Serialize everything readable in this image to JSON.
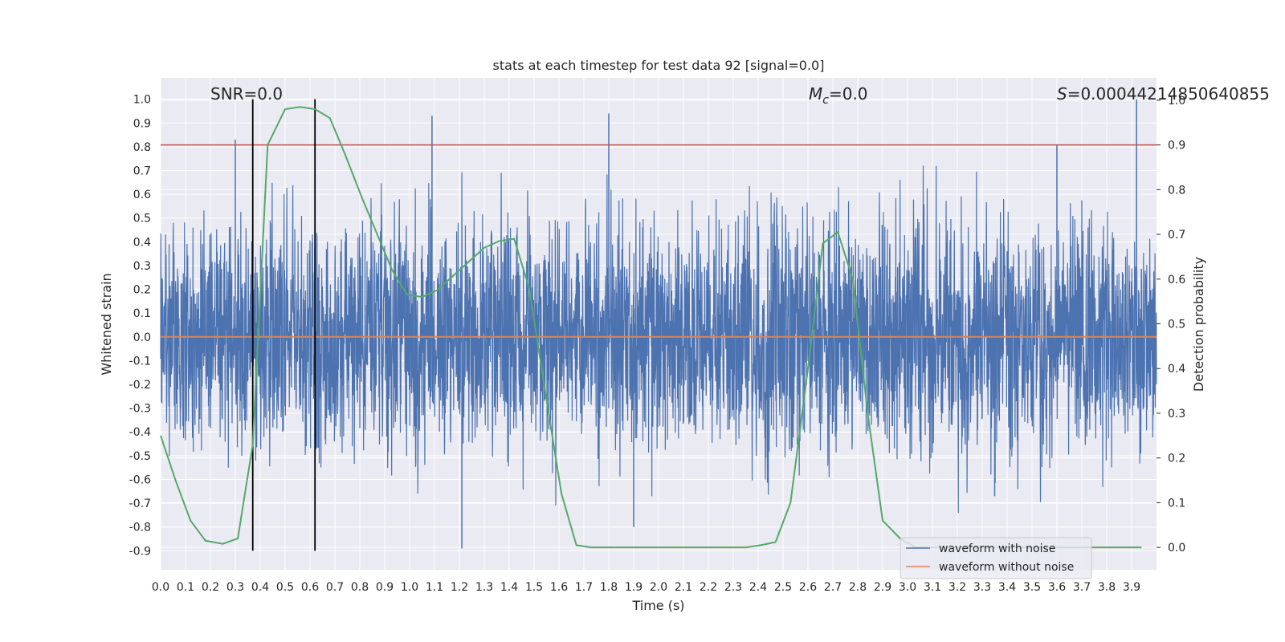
{
  "chart_data": {
    "type": "line",
    "title": "stats at each timestep for test data 92 [signal=0.0]",
    "xlabel": "Time (s)",
    "ylabel": "Whitened strain",
    "y2label": "Detection probability",
    "xlim": [
      0.0,
      4.0
    ],
    "ylim": [
      -0.98,
      1.09
    ],
    "y2lim": [
      -0.05,
      1.05
    ],
    "x_ticks": [
      "0.0",
      "0.1",
      "0.2",
      "0.3",
      "0.4",
      "0.5",
      "0.6",
      "0.7",
      "0.8",
      "0.9",
      "1.0",
      "1.1",
      "1.2",
      "1.3",
      "1.4",
      "1.5",
      "1.6",
      "1.7",
      "1.8",
      "1.9",
      "2.0",
      "2.1",
      "2.2",
      "2.3",
      "2.4",
      "2.5",
      "2.6",
      "2.7",
      "2.8",
      "2.9",
      "3.0",
      "3.1",
      "3.2",
      "3.3",
      "3.4",
      "3.5",
      "3.6",
      "3.7",
      "3.8",
      "3.9"
    ],
    "y_ticks": [
      "1.0",
      "0.9",
      "0.8",
      "0.7",
      "0.6",
      "0.5",
      "0.4",
      "0.3",
      "0.2",
      "0.1",
      "0.0",
      "-0.1",
      "-0.2",
      "-0.3",
      "-0.4",
      "-0.5",
      "-0.6",
      "-0.7",
      "-0.8",
      "-0.9"
    ],
    "y2_ticks": [
      "1.0",
      "0.9",
      "0.8",
      "0.7",
      "0.6",
      "0.5",
      "0.4",
      "0.3",
      "0.2",
      "0.1",
      "0.0"
    ],
    "grid": true,
    "legend_position": "lower-right",
    "annotations": {
      "snr": "SNR=0.0",
      "mc_symbol": "M",
      "mc_sub": "c",
      "mc_value": "=0.0",
      "s_symbol": "S",
      "s_value": "=0.00044214850640855"
    },
    "series": [
      {
        "name": "waveform with noise",
        "color": "#4c72b0",
        "description": "dense noise trace sampled over 0–4 s, amplitude roughly within ±0.9",
        "notable_peaks": [
          [
            0.3,
            0.83
          ],
          [
            1.09,
            0.93
          ],
          [
            1.8,
            0.94
          ],
          [
            3.6,
            0.81
          ],
          [
            3.92,
            1.0
          ],
          [
            0.37,
            -0.66
          ],
          [
            1.21,
            -0.89
          ],
          [
            1.9,
            -0.8
          ],
          [
            3.35,
            -0.67
          ]
        ]
      },
      {
        "name": "waveform without noise",
        "color": "#dd8452",
        "x": [
          0.0,
          4.0
        ],
        "y": [
          0.0,
          0.0
        ]
      },
      {
        "name": "Detection probability",
        "axis": "right",
        "color": "#55a868",
        "x": [
          0.0,
          0.06,
          0.12,
          0.18,
          0.25,
          0.31,
          0.37,
          0.43,
          0.5,
          0.56,
          0.62,
          0.68,
          0.74,
          0.81,
          0.87,
          0.93,
          0.99,
          1.05,
          1.11,
          1.18,
          1.24,
          1.3,
          1.36,
          1.42,
          1.48,
          1.55,
          1.61,
          1.67,
          1.73,
          2.35,
          2.41,
          2.47,
          2.53,
          2.6,
          2.66,
          2.72,
          2.78,
          2.84,
          2.9,
          2.97,
          3.03,
          3.1,
          3.5,
          3.9,
          3.94
        ],
        "y": [
          0.25,
          0.15,
          0.06,
          0.015,
          0.008,
          0.02,
          0.23,
          0.9,
          0.98,
          0.985,
          0.98,
          0.96,
          0.88,
          0.78,
          0.7,
          0.62,
          0.565,
          0.56,
          0.575,
          0.61,
          0.64,
          0.67,
          0.685,
          0.69,
          0.58,
          0.33,
          0.12,
          0.005,
          0.0,
          0.0,
          0.005,
          0.012,
          0.1,
          0.4,
          0.68,
          0.705,
          0.6,
          0.3,
          0.06,
          0.02,
          0.0,
          0.0,
          0.0,
          0.0,
          0.0
        ]
      }
    ],
    "threshold": {
      "axis": "right",
      "value": 0.9,
      "color": "#c44e52"
    },
    "vlines": {
      "x": [
        0.37,
        0.62
      ],
      "color": "#000000"
    }
  }
}
